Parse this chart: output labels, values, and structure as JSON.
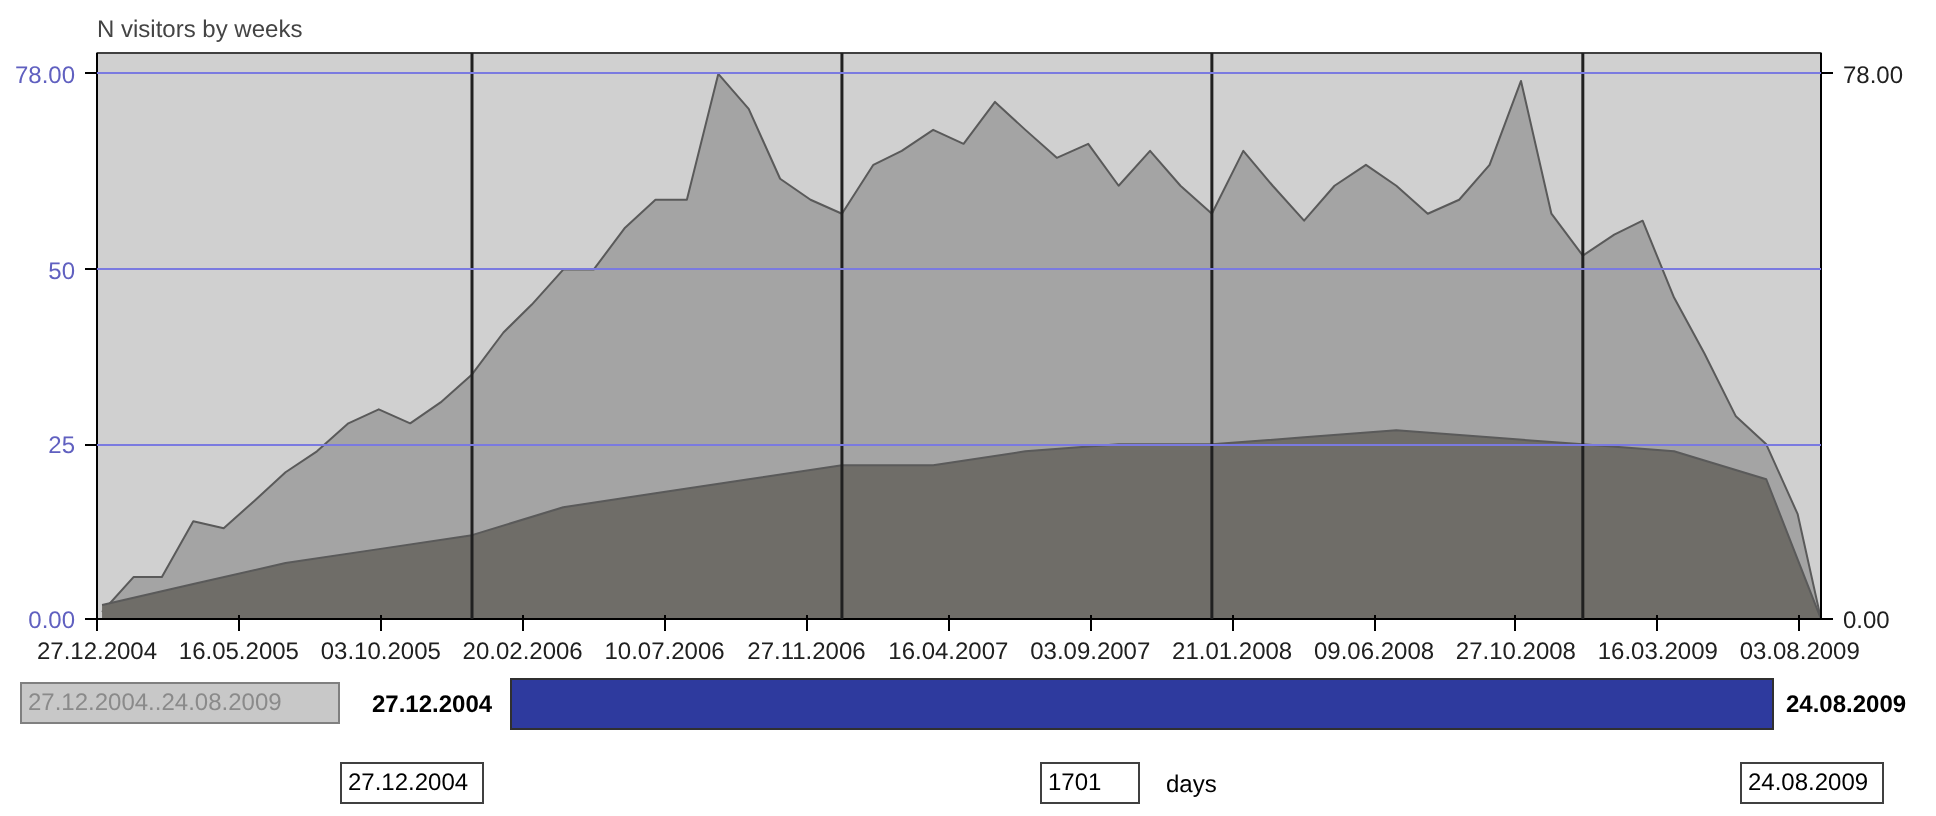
{
  "chart_data": {
    "type": "area",
    "title": "N visitors by weeks",
    "x": [
      "2005-01",
      "2005-02",
      "2005-03",
      "2005-04",
      "2005-05",
      "2005-06",
      "2005-07",
      "2005-08",
      "2005-09",
      "2005-10",
      "2005-11",
      "2005-12",
      "2006-01",
      "2006-02",
      "2006-03",
      "2006-04",
      "2006-05",
      "2006-06",
      "2006-07",
      "2006-08",
      "2006-09",
      "2006-10",
      "2006-11",
      "2006-12",
      "2007-01",
      "2007-02",
      "2007-03",
      "2007-04",
      "2007-05",
      "2007-06",
      "2007-07",
      "2007-08",
      "2007-09",
      "2007-10",
      "2007-11",
      "2007-12",
      "2008-01",
      "2008-02",
      "2008-03",
      "2008-04",
      "2008-05",
      "2008-06",
      "2008-07",
      "2008-08",
      "2008-09",
      "2008-10",
      "2008-11",
      "2008-12",
      "2009-01",
      "2009-02",
      "2009-03",
      "2009-04",
      "2009-05",
      "2009-06",
      "2009-07",
      "2009-08",
      "2009-08-24"
    ],
    "series": [
      {
        "color": "#a4a4a4",
        "values": [
          1,
          6,
          6,
          14,
          13,
          17,
          21,
          24,
          28,
          30,
          28,
          31,
          35,
          41,
          45,
          50,
          50,
          56,
          60,
          60,
          78,
          73,
          63,
          60,
          58,
          65,
          67,
          70,
          68,
          74,
          70,
          66,
          68,
          62,
          67,
          62,
          58,
          67,
          62,
          57,
          62,
          65,
          62,
          58,
          60,
          65,
          77,
          58,
          52,
          55,
          57,
          46,
          38,
          29,
          25,
          15,
          0
        ]
      },
      {
        "color": "#6f6d68",
        "x": [
          "2005-01",
          "2005-04",
          "2005-07",
          "2005-10",
          "2006-01",
          "2006-04",
          "2006-07",
          "2006-10",
          "2007-01",
          "2007-04",
          "2007-07",
          "2007-10",
          "2008-01",
          "2008-04",
          "2008-07",
          "2008-10",
          "2009-01",
          "2009-04",
          "2009-07",
          "2009-08-24"
        ],
        "values": [
          2,
          5,
          8,
          10,
          12,
          16,
          18,
          20,
          22,
          22,
          24,
          25,
          25,
          26,
          27,
          26,
          25,
          24,
          20,
          0
        ]
      }
    ],
    "xlim": [
      "2004-12-27",
      "2009-08-24"
    ],
    "xticks": [
      {
        "value": "2004-12-27",
        "label": "27.12.2004"
      },
      {
        "value": "2005-05-16",
        "label": "16.05.2005"
      },
      {
        "value": "2005-10-03",
        "label": "03.10.2005"
      },
      {
        "value": "2006-02-20",
        "label": "20.02.2006"
      },
      {
        "value": "2006-07-10",
        "label": "10.07.2006"
      },
      {
        "value": "2006-11-27",
        "label": "27.11.2006"
      },
      {
        "value": "2007-04-16",
        "label": "16.04.2007"
      },
      {
        "value": "2007-09-03",
        "label": "03.09.2007"
      },
      {
        "value": "2008-01-21",
        "label": "21.01.2008"
      },
      {
        "value": "2008-06-09",
        "label": "09.06.2008"
      },
      {
        "value": "2008-10-27",
        "label": "27.10.2008"
      },
      {
        "value": "2009-03-16",
        "label": "16.03.2009"
      },
      {
        "value": "2009-08-03",
        "label": "03.08.2009"
      }
    ],
    "ylim": [
      0,
      81
    ],
    "yticks": [
      {
        "value": 0,
        "label": "0.00"
      },
      25,
      50,
      {
        "value": 78,
        "label": "78.00"
      }
    ],
    "y2lim": [
      0,
      81
    ],
    "y2ticks": [
      {
        "value": 0,
        "label": "0.00"
      },
      {
        "value": 78,
        "label": "78.00"
      }
    ],
    "grid": "y",
    "ref_lines": [
      {
        "axis": "x",
        "value": "2006-01-01",
        "color": "#202020"
      },
      {
        "axis": "x",
        "value": "2007-01-01",
        "color": "#202020"
      },
      {
        "axis": "x",
        "value": "2008-01-01",
        "color": "#202020"
      },
      {
        "axis": "x",
        "value": "2009-01-01",
        "color": "#202020"
      }
    ],
    "annotations": [
      "27.12.2004..24.08.2009",
      "27.12.2004",
      "24.08.2009",
      "27.12.2004",
      "1701",
      "days",
      "24.08.2009"
    ]
  }
}
